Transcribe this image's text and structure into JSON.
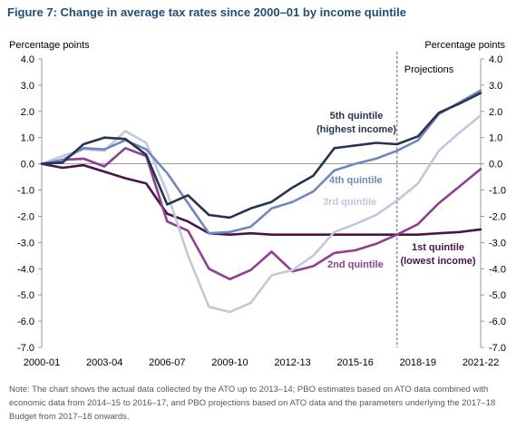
{
  "title": "Figure 7: Change in average tax rates since 2000–01 by income quintile",
  "note": "Note: The chart shows the actual data collected by the ATO up to 2013–14; PBO estimates based on ATO data combined with economic data from 2014–15 to 2016–17, and PBO projections based on ATO data and the parameters underlying the 2017–18 Budget from 2017–18 onwards.",
  "chart_data": {
    "type": "line",
    "ylabel_left": "Percentage points",
    "ylabel_right": "Percentage points",
    "ylim": [
      -7,
      4
    ],
    "yticks": [
      "4.0",
      "3.0",
      "2.0",
      "1.0",
      "0.0",
      "-1.0",
      "-2.0",
      "-3.0",
      "-4.0",
      "-5.0",
      "-6.0",
      "-7.0"
    ],
    "x": [
      "2000-01",
      "2001-02",
      "2002-03",
      "2003-04",
      "2004-05",
      "2005-06",
      "2006-07",
      "2007-08",
      "2008-09",
      "2009-10",
      "2010-11",
      "2011-12",
      "2012-13",
      "2013-14",
      "2014-15",
      "2015-16",
      "2016-17",
      "2017-18",
      "2018-19",
      "2019-20",
      "2020-21",
      "2021-22"
    ],
    "xtick_labels": [
      "2000-01",
      "2003-04",
      "2006-07",
      "2009-10",
      "2012-13",
      "2015-16",
      "2018-19",
      "2021-22"
    ],
    "projection_start": "2017-18",
    "projection_label": "Projections",
    "grid": false,
    "series": [
      {
        "name": "1st quintile (lowest income)",
        "label_lines": [
          "1st quintile",
          "(lowest income)"
        ],
        "color": "#4b1447",
        "values": [
          0.0,
          -0.15,
          -0.05,
          -0.3,
          -0.55,
          -0.75,
          -1.9,
          -2.2,
          -2.65,
          -2.7,
          -2.65,
          -2.7,
          -2.7,
          -2.7,
          -2.7,
          -2.7,
          -2.7,
          -2.7,
          -2.7,
          -2.65,
          -2.6,
          -2.5
        ]
      },
      {
        "name": "2nd quintile",
        "label_lines": [
          "2nd quintile"
        ],
        "color": "#8e3f91",
        "values": [
          0.0,
          0.15,
          0.2,
          -0.1,
          0.6,
          0.3,
          -2.2,
          -2.55,
          -4.0,
          -4.4,
          -4.05,
          -3.35,
          -4.1,
          -3.9,
          -3.4,
          -3.3,
          -3.05,
          -2.7,
          -2.3,
          -1.5,
          -0.85,
          -0.2
        ]
      },
      {
        "name": "3rd quintile",
        "label_lines": [
          "3rd quintile"
        ],
        "color": "#bfc9de",
        "values": [
          0.0,
          0.3,
          0.55,
          0.5,
          1.25,
          0.8,
          -1.1,
          -3.5,
          -5.45,
          -5.65,
          -5.3,
          -4.25,
          -4.05,
          -3.5,
          -2.6,
          -2.3,
          -1.95,
          -1.4,
          -0.75,
          0.5,
          1.2,
          1.85
        ]
      },
      {
        "name": "4th quintile",
        "label_lines": [
          "4th quintile"
        ],
        "color": "#6f86c1",
        "values": [
          0.0,
          0.15,
          0.6,
          0.55,
          0.9,
          0.55,
          -0.35,
          -1.5,
          -2.65,
          -2.6,
          -2.4,
          -1.7,
          -1.45,
          -1.05,
          -0.25,
          0.0,
          0.2,
          0.5,
          0.9,
          1.9,
          2.35,
          2.8
        ]
      },
      {
        "name": "5th quintile (highest income)",
        "label_lines": [
          "5th quintile",
          "(highest income)"
        ],
        "color": "#27344f",
        "values": [
          0.0,
          0.05,
          0.75,
          1.0,
          0.95,
          0.35,
          -1.55,
          -1.2,
          -1.95,
          -2.05,
          -1.7,
          -1.45,
          -0.9,
          -0.45,
          0.6,
          0.7,
          0.8,
          0.75,
          1.05,
          1.95,
          2.3,
          2.7
        ]
      }
    ]
  }
}
